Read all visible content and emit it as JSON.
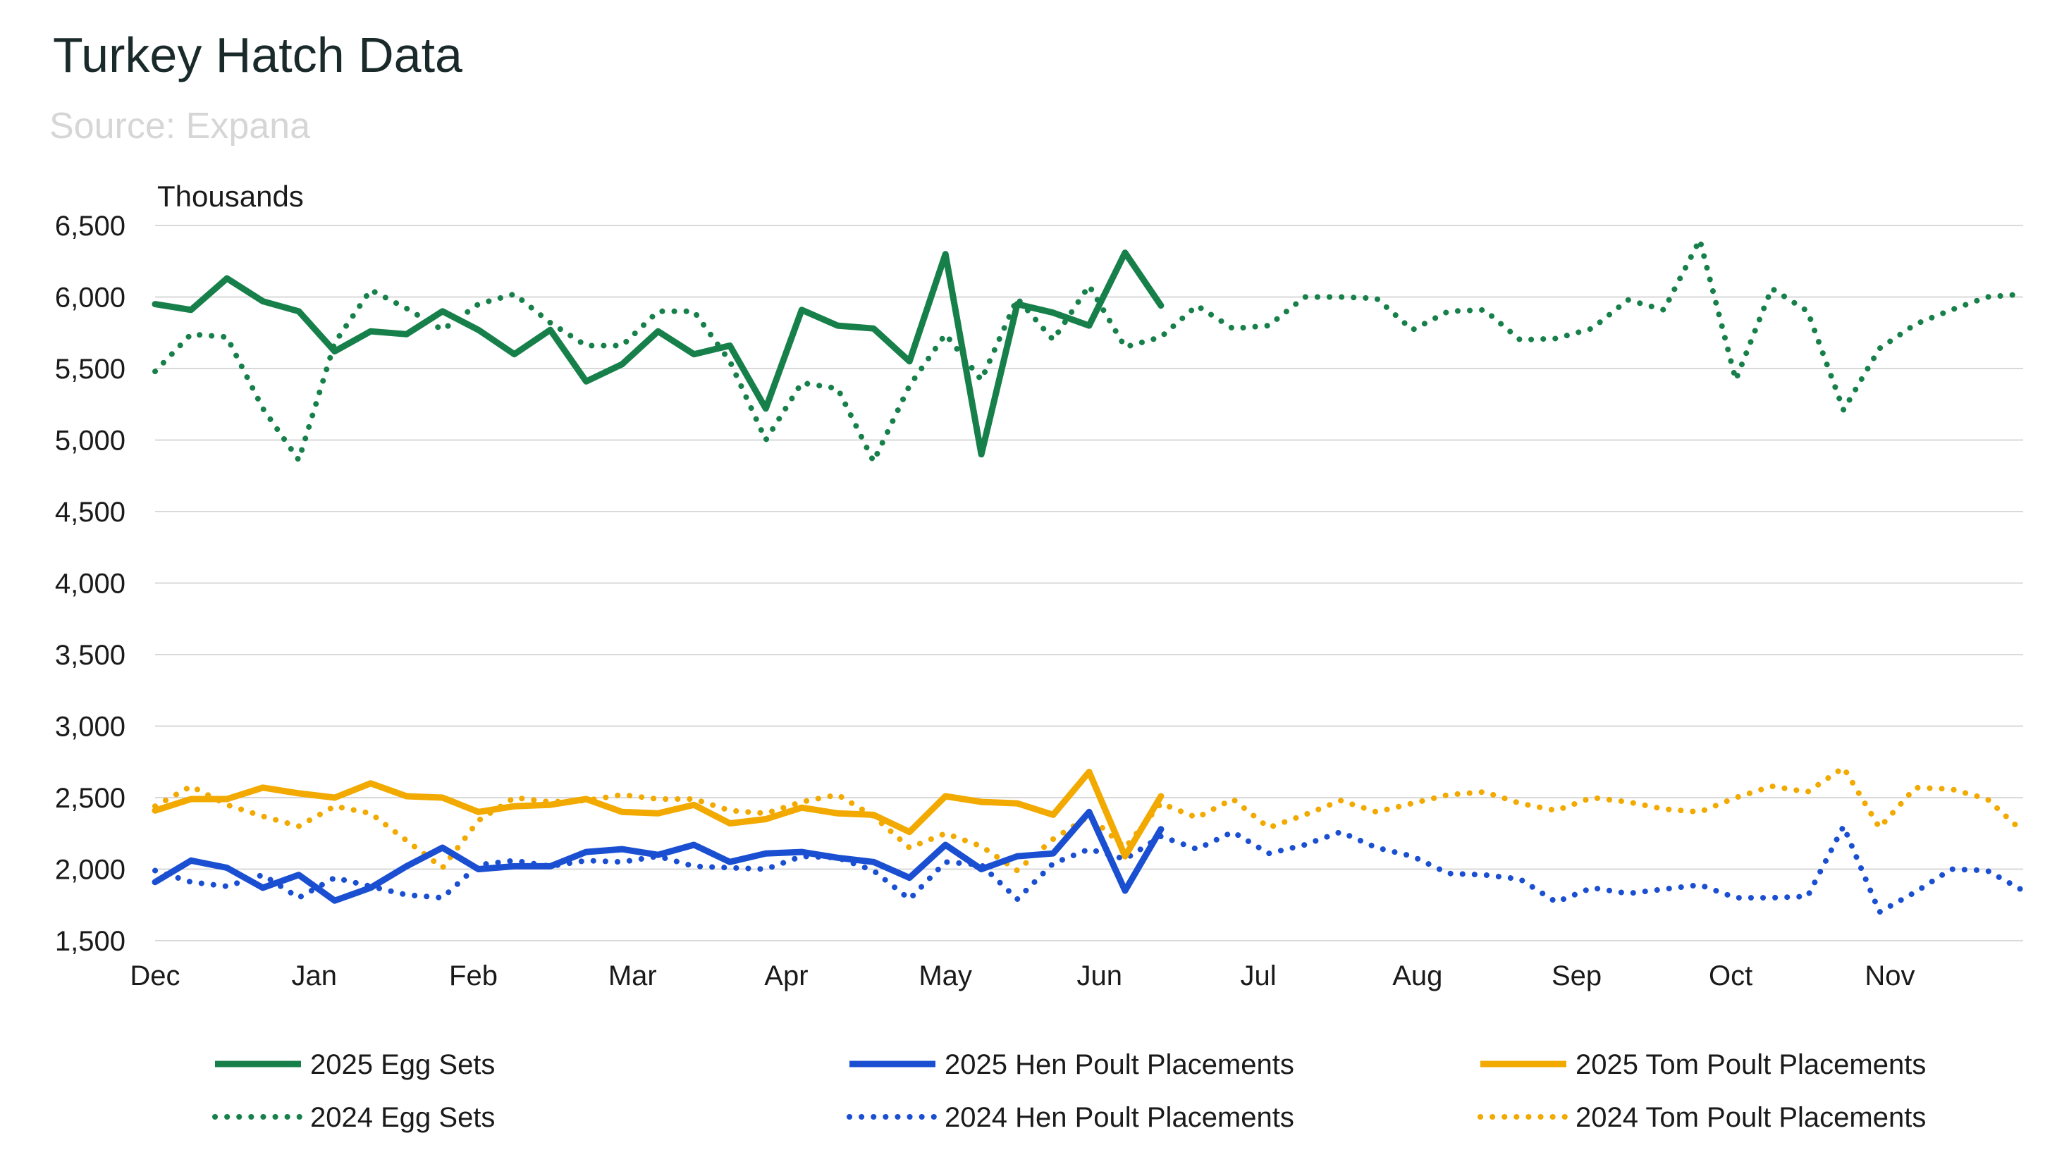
{
  "chart_data": {
    "type": "line",
    "title": "Turkey Hatch Data",
    "subtitle": "Source: Expana",
    "ylabel": "Thousands",
    "ylim": [
      1500,
      6500
    ],
    "yticks": [
      1500,
      2000,
      2500,
      3000,
      3500,
      4000,
      4500,
      5000,
      5500,
      6000,
      6500
    ],
    "ytick_labels": [
      "1,500",
      "2,000",
      "2,500",
      "3,000",
      "3,500",
      "4,000",
      "4,500",
      "5,000",
      "5,500",
      "6,000",
      "6,500"
    ],
    "x_weeks": 53,
    "x_tick_labels": [
      "Dec",
      "Jan",
      "Feb",
      "Mar",
      "Apr",
      "May",
      "Jun",
      "Jul",
      "Aug",
      "Sep",
      "Oct",
      "Nov"
    ],
    "x_tick_weeks": [
      0,
      4.43,
      8.86,
      13.29,
      17.57,
      22,
      26.29,
      30.71,
      35.14,
      39.57,
      43.86,
      48.29
    ],
    "grid": "horizontal",
    "legend_position": "bottom",
    "series": [
      {
        "name": "2025 Egg Sets",
        "color": "#17804a",
        "style": "solid",
        "values": [
          5950,
          5910,
          6130,
          5970,
          5900,
          5620,
          5760,
          5740,
          5900,
          5770,
          5600,
          5770,
          5410,
          5530,
          5760,
          5600,
          5660,
          5220,
          5910,
          5800,
          5780,
          5550,
          6300,
          4900,
          5950,
          5890,
          5800,
          6310,
          5940
        ]
      },
      {
        "name": "2024 Egg Sets",
        "color": "#17804a",
        "style": "dotted",
        "values": [
          5480,
          5740,
          5720,
          5220,
          4860,
          5680,
          6050,
          5920,
          5770,
          5950,
          6020,
          5820,
          5660,
          5660,
          5900,
          5900,
          5550,
          5000,
          5400,
          5360,
          4850,
          5380,
          5740,
          5420,
          5990,
          5700,
          6080,
          5650,
          5720,
          5940,
          5780,
          5800,
          6000,
          6000,
          5990,
          5770,
          5900,
          5910,
          5700,
          5710,
          5780,
          5980,
          5910,
          6400,
          5420,
          6060,
          5900,
          5210,
          5640,
          5810,
          5910,
          6000,
          6020
        ]
      },
      {
        "name": "2025 Hen Poult Placements",
        "color": "#1b4fd1",
        "style": "solid",
        "values": [
          1910,
          2060,
          2010,
          1870,
          1960,
          1780,
          1870,
          2020,
          2150,
          2000,
          2020,
          2020,
          2120,
          2140,
          2100,
          2170,
          2050,
          2110,
          2120,
          2080,
          2050,
          1940,
          2170,
          2000,
          2090,
          2110,
          2400,
          1850,
          2280
        ]
      },
      {
        "name": "2024 Hen Poult Placements",
        "color": "#1b4fd1",
        "style": "dotted",
        "values": [
          1990,
          1910,
          1880,
          1960,
          1800,
          1940,
          1880,
          1820,
          1800,
          2030,
          2060,
          2020,
          2060,
          2050,
          2090,
          2020,
          2010,
          2000,
          2090,
          2080,
          1990,
          1790,
          2050,
          2030,
          1790,
          2040,
          2140,
          2070,
          2230,
          2140,
          2260,
          2110,
          2170,
          2260,
          2150,
          2090,
          1970,
          1960,
          1930,
          1770,
          1870,
          1830,
          1860,
          1890,
          1800,
          1800,
          1810,
          2300,
          1700,
          1840,
          2000,
          1990,
          1850
        ]
      },
      {
        "name": "2025 Tom Poult Placements",
        "color": "#f2a900",
        "style": "solid",
        "values": [
          2410,
          2490,
          2490,
          2570,
          2530,
          2500,
          2600,
          2510,
          2500,
          2400,
          2440,
          2450,
          2490,
          2400,
          2390,
          2450,
          2320,
          2350,
          2430,
          2390,
          2380,
          2260,
          2510,
          2470,
          2460,
          2380,
          2680,
          2090,
          2510
        ]
      },
      {
        "name": "2024 Tom Poult Placements",
        "color": "#f2a900",
        "style": "dotted",
        "values": [
          2440,
          2580,
          2450,
          2370,
          2300,
          2440,
          2390,
          2200,
          2010,
          2340,
          2500,
          2470,
          2480,
          2520,
          2490,
          2490,
          2410,
          2390,
          2470,
          2520,
          2370,
          2150,
          2250,
          2160,
          1990,
          2210,
          2370,
          2150,
          2460,
          2360,
          2490,
          2290,
          2380,
          2480,
          2400,
          2460,
          2520,
          2540,
          2460,
          2410,
          2500,
          2470,
          2420,
          2400,
          2500,
          2580,
          2540,
          2710,
          2290,
          2570,
          2560,
          2490,
          2260
        ]
      }
    ]
  }
}
